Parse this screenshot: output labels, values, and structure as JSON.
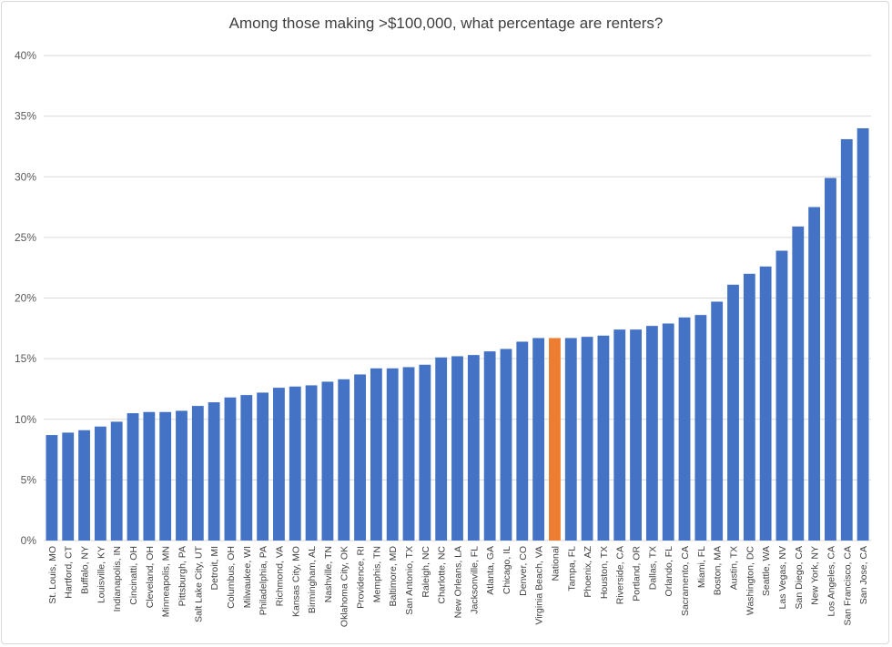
{
  "chart_data": {
    "type": "bar",
    "title": "Among those making >$100,000, what percentage are renters?",
    "xlabel": "",
    "ylabel": "",
    "ylim": [
      0,
      40
    ],
    "yticks": [
      "0%",
      "5%",
      "10%",
      "15%",
      "20%",
      "25%",
      "30%",
      "35%",
      "40%"
    ],
    "grid": true,
    "colors": {
      "default": "#4472C4",
      "highlight": "#ED7D31",
      "grid": "#d9d9d9"
    },
    "highlight_category": "National",
    "categories": [
      "St. Louis, MO",
      "Hartford, CT",
      "Buffalo, NY",
      "Louisville, KY",
      "Indianapolis, IN",
      "Cincinatti, OH",
      "Cleveland, OH",
      "Minneapolis, MN",
      "Pittsburgh, PA",
      "Salt Lake City, UT",
      "Detroit, MI",
      "Columbus, OH",
      "Milwaukee, WI",
      "Philadelphia, PA",
      "Richmond, VA",
      "Kansas City, MO",
      "Birmingham, AL",
      "Nashville, TN",
      "Oklahoma City, OK",
      "Providence, RI",
      "Memphis, TN",
      "Baltimore, MD",
      "San Antonio, TX",
      "Raleigh, NC",
      "Charlotte, NC",
      "New Orleans, LA",
      "Jacksonville, FL",
      "Atlanta, GA",
      "Chicago, IL",
      "Denver, CO",
      "Virginia Beach, VA",
      "National",
      "Tampa, FL",
      "Phoenix, AZ",
      "Houston, TX",
      "Riverside, CA",
      "Portland, OR",
      "Dallas, TX",
      "Orlando, FL",
      "Sacramento, CA",
      "Miami, FL",
      "Boston, MA",
      "Austin, TX",
      "Washington, DC",
      "Seattle, WA",
      "Las Vegas, NV",
      "San Diego, CA",
      "New York, NY",
      "Los Angeles, CA",
      "San Francisco, CA",
      "San Jose, CA"
    ],
    "values": [
      8.7,
      8.9,
      9.1,
      9.4,
      9.8,
      10.5,
      10.6,
      10.6,
      10.7,
      11.1,
      11.4,
      11.8,
      12.0,
      12.2,
      12.6,
      12.7,
      12.8,
      13.1,
      13.3,
      13.7,
      14.2,
      14.2,
      14.3,
      14.5,
      15.1,
      15.2,
      15.3,
      15.6,
      15.8,
      16.4,
      16.7,
      16.7,
      16.7,
      16.8,
      16.9,
      17.4,
      17.4,
      17.7,
      17.9,
      18.4,
      18.6,
      19.7,
      21.1,
      22.0,
      22.6,
      23.9,
      25.9,
      27.5,
      29.9,
      33.1,
      34.0
    ]
  }
}
